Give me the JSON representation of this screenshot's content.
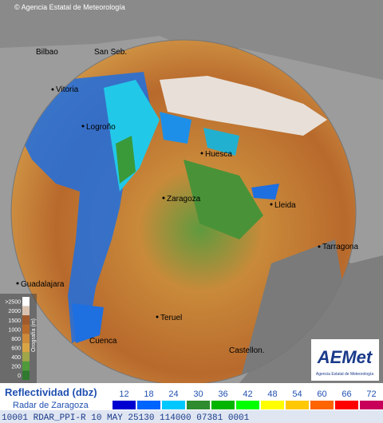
{
  "header": {
    "credit": "© Agencia Estatal de Meteorología"
  },
  "map": {
    "cities": [
      "Bilbao",
      "San Seb.",
      "Vitoria",
      "Logroño",
      "Huesca",
      "Zaragoza",
      "Lleida",
      "Tarragona",
      "Guadalajara",
      "Teruel",
      "Castellon.",
      "Cuenca"
    ]
  },
  "elevation_legend": {
    "title": "Orografía (m)",
    "labels": [
      ">2500",
      "2000",
      "1500",
      "1000",
      "800",
      "600",
      "400",
      "200",
      "0"
    ],
    "colors": [
      "#ffffff",
      "#d9c3b0",
      "#a05a2c",
      "#b86a2a",
      "#cf8a3a",
      "#d9a544",
      "#9fa648",
      "#4f9a3a",
      "#2f7a2f"
    ]
  },
  "logo": {
    "name": "AEMet",
    "subtitle": "Agencia Estatal de Meteorología"
  },
  "reflectivity_legend": {
    "title": "Reflectividad (dbz)",
    "radar": "Radar de Zaragoza",
    "levels": [
      12,
      18,
      24,
      30,
      36,
      42,
      48,
      54,
      60,
      66,
      72
    ],
    "colors": [
      "#0000d0",
      "#0064ff",
      "#00c8ff",
      "#2e8b2e",
      "#00b400",
      "#00ff00",
      "#ffff00",
      "#ffc800",
      "#ff6400",
      "#ff0000",
      "#c8005a"
    ]
  },
  "footer": {
    "text": "10001 RDAR_PPI-R   10 MAY 25130 114000 07381 0001"
  }
}
